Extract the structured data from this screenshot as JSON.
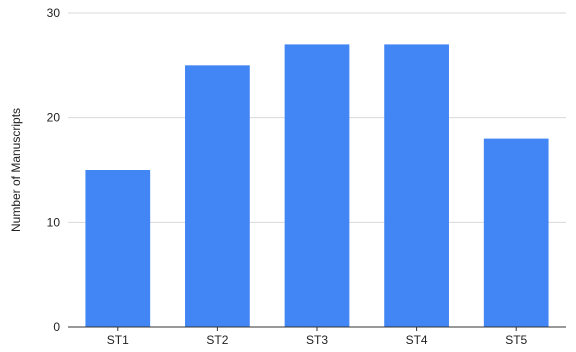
{
  "chart_data": {
    "type": "bar",
    "title": "",
    "xlabel": "",
    "ylabel": "Number of Manuscripts",
    "categories": [
      "ST1",
      "ST2",
      "ST3",
      "ST4",
      "ST5"
    ],
    "values": [
      15,
      25,
      27,
      27,
      18
    ],
    "ylim": [
      0,
      30
    ],
    "yticks": [
      0,
      10,
      20,
      30
    ],
    "grid": true,
    "legend": "none",
    "bar_color": "#4285F4",
    "grid_color": "#d9d9d9",
    "axis_color": "#333333",
    "text_color": "#222222"
  }
}
